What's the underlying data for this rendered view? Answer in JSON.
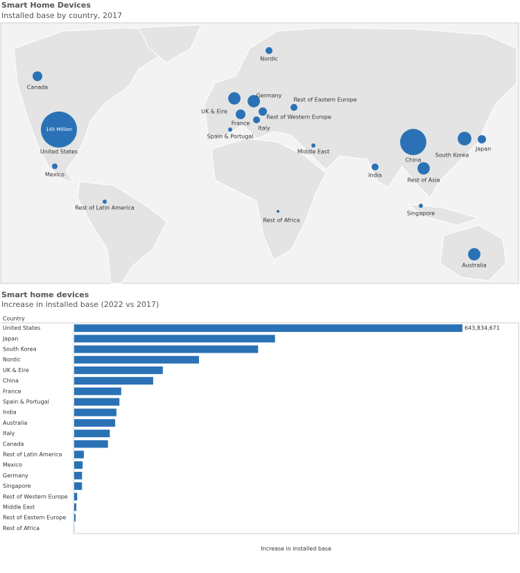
{
  "chart_data": [
    {
      "type": "bubble-map",
      "title": "Smart Home Devices",
      "subtitle": "Installed base by country, 2017",
      "color": "#2a72b5",
      "categories": [
        "United States",
        "China",
        "South Korea",
        "Rest of Asia",
        "UK & Eire",
        "Germany",
        "Australia",
        "Canada",
        "France",
        "Japan",
        "Rest of Western Europe",
        "Rest of Eastern Europe",
        "Nordic",
        "India",
        "Italy",
        "Mexico",
        "Middle East",
        "Spain & Portugal",
        "Singapore",
        "Rest of Latin America",
        "Rest of Africa"
      ],
      "values": [
        145,
        77,
        21,
        17,
        17,
        17,
        17,
        10.5,
        10.5,
        7.7,
        7.7,
        5.4,
        5.4,
        5.4,
        5.4,
        3.4,
        1.9,
        1.9,
        1.9,
        1.9,
        0.9
      ],
      "value_labels": [
        "145 Million",
        null,
        null,
        null,
        null,
        null,
        null,
        null,
        null,
        null,
        null,
        null,
        null,
        null,
        null,
        null,
        null,
        null,
        null,
        null,
        null
      ]
    },
    {
      "type": "hbar",
      "title": "Smart home devices",
      "subtitle": "Increase in installed base (2022 vs 2017)",
      "category_header": "Country",
      "x_label": "Increase in installed base",
      "color": "#2a72b5",
      "categories": [
        "United States",
        "Japan",
        "South Korea",
        "Nordic",
        "UK & Eire",
        "China",
        "France",
        "Spain & Portugal",
        "India",
        "Australia",
        "Italy",
        "Canada",
        "Rest of Latin America",
        "Mexico",
        "Germany",
        "Singapore",
        "Rest of Western Europe",
        "Middle East",
        "Rest of Eastern Europe",
        "Rest of Africa"
      ],
      "values": [
        643834671,
        333000000,
        305000000,
        207000000,
        147000000,
        131000000,
        78000000,
        75000000,
        70000000,
        68000000,
        59000000,
        56000000,
        16000000,
        14000000,
        13000000,
        13000000,
        5000000,
        3500000,
        2300000,
        300000
      ],
      "value_labels": [
        "643,834,671",
        null,
        null,
        null,
        null,
        null,
        null,
        null,
        null,
        null,
        null,
        null,
        null,
        null,
        null,
        null,
        null,
        null,
        null,
        null
      ],
      "xlim": [
        0,
        737000000
      ]
    }
  ]
}
